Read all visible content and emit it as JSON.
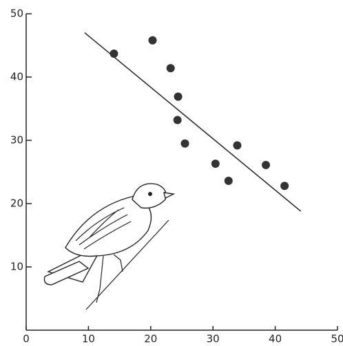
{
  "chart_data": {
    "type": "scatter",
    "x": [
      14.1,
      20.3,
      23.2,
      24.4,
      24.3,
      25.5,
      30.4,
      33.9,
      32.5,
      38.5,
      41.5
    ],
    "y": [
      43.7,
      45.8,
      41.4,
      36.9,
      33.2,
      29.5,
      26.3,
      29.2,
      23.6,
      26.1,
      22.8
    ],
    "color": "#333333",
    "trend_line": {
      "x": [
        9.4,
        44.1
      ],
      "y": [
        47.0,
        18.8
      ]
    },
    "xlim": [
      0,
      50
    ],
    "ylim": [
      0,
      50
    ],
    "xticks": [
      0,
      10,
      20,
      30,
      40,
      50
    ],
    "yticks": [
      10,
      20,
      30,
      40,
      50
    ]
  }
}
